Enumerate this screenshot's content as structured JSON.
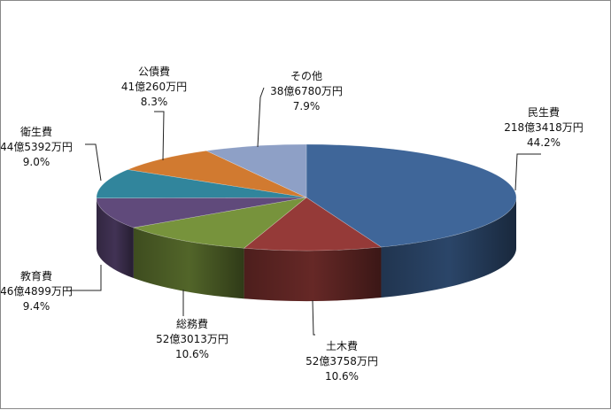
{
  "chart_data": {
    "type": "pie",
    "variant": "3d",
    "start": "12 o'clock, clockwise",
    "slices": [
      {
        "name": "民生費",
        "amount": "218億3418万円",
        "percent_label": "44.2%",
        "value": 44.2,
        "color": "#3f6699"
      },
      {
        "name": "土木費",
        "amount": "52億3758万円",
        "percent_label": "10.6%",
        "value": 10.6,
        "color": "#953a38"
      },
      {
        "name": "総務費",
        "amount": "52億3013万円",
        "percent_label": "10.6%",
        "value": 10.6,
        "color": "#77933c"
      },
      {
        "name": "教育費",
        "amount": "46億4899万円",
        "percent_label": "9.4%",
        "value": 9.4,
        "color": "#604a7b"
      },
      {
        "name": "衛生費",
        "amount": "44億5392万円",
        "percent_label": "9.0%",
        "value": 9.0,
        "color": "#31859c"
      },
      {
        "name": "公債費",
        "amount": "41億260万円",
        "percent_label": "8.3%",
        "value": 8.3,
        "color": "#d17a30"
      },
      {
        "name": "その他",
        "amount": "38億6780万円",
        "percent_label": "7.9%",
        "value": 7.9,
        "color": "#8ea0c6"
      }
    ]
  }
}
